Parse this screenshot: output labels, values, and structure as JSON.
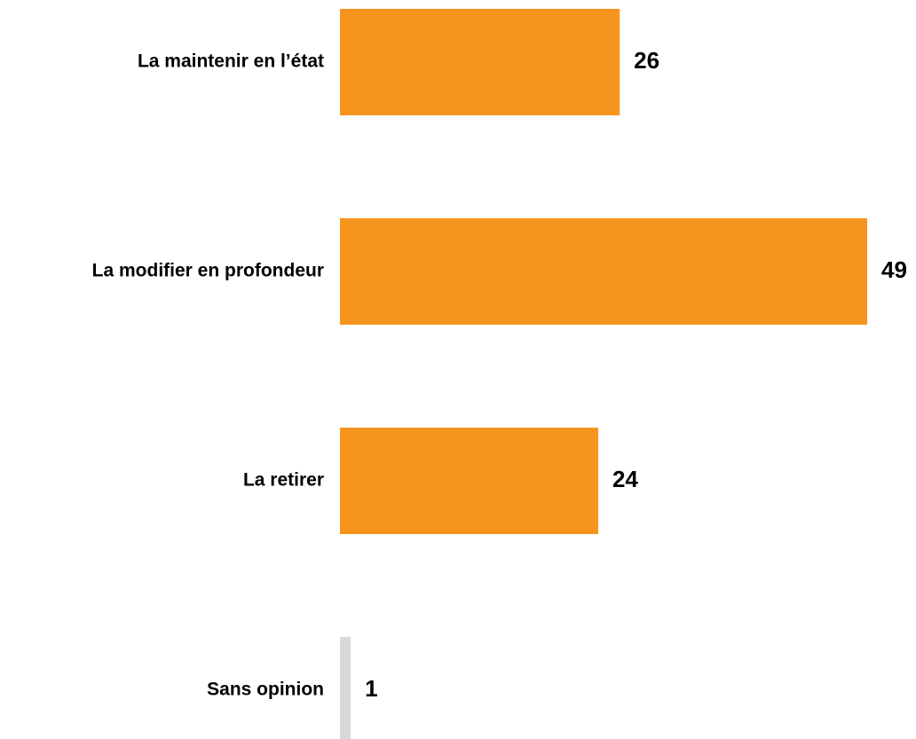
{
  "chart_data": {
    "type": "barh",
    "categories": [
      "La maintenir en l’état",
      "La modifier en profondeur",
      "La retirer",
      "Sans opinion"
    ],
    "values": [
      26,
      49,
      24,
      1
    ],
    "colors": [
      "#f7941d",
      "#f7941d",
      "#f7941d",
      "#d9d9d9"
    ]
  }
}
